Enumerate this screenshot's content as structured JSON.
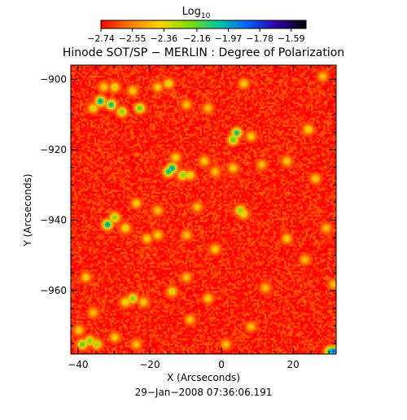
{
  "chart_data": {
    "type": "heatmap",
    "title": "Hinode SOT/SP − MERLIN : Degree of Polarization",
    "xlabel": "X (Arcseconds)",
    "ylabel": "Y (Arcseconds)",
    "xlim": [
      -42,
      32
    ],
    "ylim": [
      -978,
      -896
    ],
    "x_ticks": [
      -40,
      -20,
      0,
      20
    ],
    "x_tick_labels": [
      "−40",
      "−20",
      "0",
      "20"
    ],
    "y_ticks": [
      -900,
      -920,
      -940,
      -960
    ],
    "y_tick_labels": [
      "−900",
      "−920",
      "−940",
      "−960"
    ],
    "colorbar": {
      "label": "Log",
      "label_sub": "10",
      "range": [
        -2.74,
        -1.5
      ],
      "ticks": [
        -2.74,
        -2.55,
        -2.36,
        -2.16,
        -1.97,
        -1.78,
        -1.59
      ],
      "tick_labels": [
        "−2.74",
        "−2.55",
        "−2.36",
        "−2.16",
        "−1.97",
        "−1.78",
        "−1.59"
      ],
      "colors": [
        "#ff0000",
        "#ff7a00",
        "#ffd200",
        "#7fe000",
        "#00c8a0",
        "#0060ff",
        "#3000a0",
        "#000000"
      ]
    },
    "grid": false,
    "background_level": -2.7,
    "features": [
      {
        "x": -33,
        "y": -902,
        "level": -2.36
      },
      {
        "x": -30,
        "y": -902,
        "level": -2.3
      },
      {
        "x": -25,
        "y": -903,
        "level": -2.36
      },
      {
        "x": -18,
        "y": -902,
        "level": -2.36
      },
      {
        "x": -15,
        "y": -901,
        "level": -2.3
      },
      {
        "x": 6,
        "y": -901,
        "level": -2.36
      },
      {
        "x": 28,
        "y": -899,
        "level": -2.4
      },
      {
        "x": -34,
        "y": -906,
        "level": -1.9
      },
      {
        "x": -31,
        "y": -907,
        "level": -1.97
      },
      {
        "x": -36,
        "y": -908,
        "level": -2.3
      },
      {
        "x": -28,
        "y": -909,
        "level": -2.16
      },
      {
        "x": -23,
        "y": -908,
        "level": -2.1
      },
      {
        "x": -10,
        "y": -907,
        "level": -2.4
      },
      {
        "x": -4,
        "y": -908,
        "level": -2.4
      },
      {
        "x": 4,
        "y": -915,
        "level": -1.97
      },
      {
        "x": 3,
        "y": -917,
        "level": -2.1
      },
      {
        "x": 8,
        "y": -916,
        "level": -2.36
      },
      {
        "x": 24,
        "y": -914,
        "level": -2.3
      },
      {
        "x": -13,
        "y": -922,
        "level": -2.36
      },
      {
        "x": -14,
        "y": -925,
        "level": -1.9
      },
      {
        "x": -15,
        "y": -926,
        "level": -1.97
      },
      {
        "x": -11,
        "y": -927,
        "level": -2.16
      },
      {
        "x": -9,
        "y": -927,
        "level": -2.3
      },
      {
        "x": -5,
        "y": -923,
        "level": -2.36
      },
      {
        "x": -2,
        "y": -926,
        "level": -2.4
      },
      {
        "x": 3,
        "y": -925,
        "level": -2.36
      },
      {
        "x": 11,
        "y": -924,
        "level": -2.4
      },
      {
        "x": 18,
        "y": -923,
        "level": -2.36
      },
      {
        "x": 26,
        "y": -928,
        "level": -2.36
      },
      {
        "x": -24,
        "y": -935,
        "level": -2.36
      },
      {
        "x": -18,
        "y": -937,
        "level": -2.4
      },
      {
        "x": -7,
        "y": -936,
        "level": -2.4
      },
      {
        "x": -32,
        "y": -941,
        "level": -1.9
      },
      {
        "x": -30,
        "y": -939,
        "level": -2.16
      },
      {
        "x": -27,
        "y": -942,
        "level": -2.3
      },
      {
        "x": -21,
        "y": -945,
        "level": -2.36
      },
      {
        "x": -18,
        "y": -944,
        "level": -2.36
      },
      {
        "x": -10,
        "y": -944,
        "level": -2.4
      },
      {
        "x": 5,
        "y": -937,
        "level": -2.16
      },
      {
        "x": 6,
        "y": -938,
        "level": -2.3
      },
      {
        "x": 18,
        "y": -945,
        "level": -2.36
      },
      {
        "x": 29,
        "y": -942,
        "level": -2.4
      },
      {
        "x": -2,
        "y": -948,
        "level": -2.36
      },
      {
        "x": 23,
        "y": -951,
        "level": -2.4
      },
      {
        "x": -38,
        "y": -956,
        "level": -2.36
      },
      {
        "x": -10,
        "y": -956,
        "level": -2.4
      },
      {
        "x": -14,
        "y": -960,
        "level": -2.3
      },
      {
        "x": -25,
        "y": -962,
        "level": -2.16
      },
      {
        "x": -27,
        "y": -963,
        "level": -2.3
      },
      {
        "x": -22,
        "y": -963,
        "level": -2.36
      },
      {
        "x": -4,
        "y": -962,
        "level": -2.36
      },
      {
        "x": 12,
        "y": -959,
        "level": -2.4
      },
      {
        "x": 31,
        "y": -958,
        "level": -2.4
      },
      {
        "x": -36,
        "y": -966,
        "level": -2.4
      },
      {
        "x": -9,
        "y": -968,
        "level": -2.4
      },
      {
        "x": 8,
        "y": -970,
        "level": -2.4
      },
      {
        "x": -40,
        "y": -971,
        "level": -2.36
      },
      {
        "x": -37,
        "y": -974,
        "level": -2.16
      },
      {
        "x": -39,
        "y": -975,
        "level": -2.1
      },
      {
        "x": -35,
        "y": -975,
        "level": -2.2
      },
      {
        "x": -30,
        "y": -973,
        "level": -2.36
      },
      {
        "x": -24,
        "y": -975,
        "level": -2.4
      },
      {
        "x": 1,
        "y": -975,
        "level": -2.4
      },
      {
        "x": 30,
        "y": -977,
        "level": -1.97
      },
      {
        "x": 31,
        "y": -977,
        "level": -1.78
      }
    ]
  },
  "timestamp": "29−Jan−2008 07:36:06.191"
}
